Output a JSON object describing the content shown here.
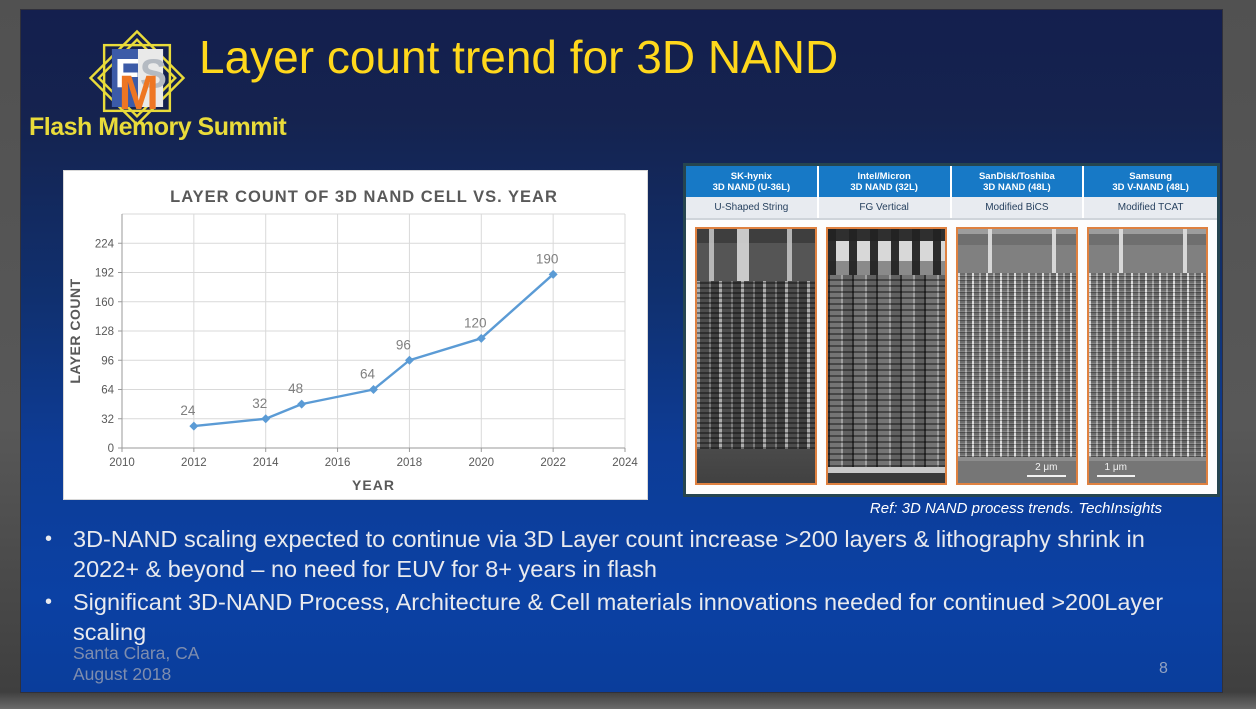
{
  "header": {
    "title": "Layer count trend for 3D NAND",
    "logo_text": "Flash Memory Summit"
  },
  "chart_data": {
    "type": "line",
    "title": "LAYER COUNT OF 3D NAND CELL VS. YEAR",
    "xlabel": "YEAR",
    "ylabel": "LAYER COUNT",
    "x": [
      2012,
      2014,
      2015,
      2017,
      2018,
      2020,
      2022
    ],
    "values": [
      24,
      32,
      48,
      64,
      96,
      120,
      190
    ],
    "point_labels": [
      "24",
      "32",
      "48",
      "64",
      "96",
      "120",
      "190"
    ],
    "xlim": [
      2010,
      2024
    ],
    "ylim": [
      0,
      256
    ],
    "x_ticks": [
      2010,
      2012,
      2014,
      2016,
      2018,
      2020,
      2022,
      2024
    ],
    "y_ticks": [
      0,
      32,
      64,
      96,
      128,
      160,
      192,
      224
    ],
    "grid": true,
    "legend": "none",
    "line_color": "#5b9bd5",
    "point_label_color": "#7f7f7f",
    "axis_text_color": "#595959",
    "grid_color": "#d9d9d9"
  },
  "sem_table": {
    "columns": [
      {
        "vendor": "SK-hynix",
        "device": "3D NAND (U-36L)",
        "architecture": "U-Shaped String",
        "scale_label": ""
      },
      {
        "vendor": "Intel/Micron",
        "device": "3D NAND (32L)",
        "architecture": "FG Vertical",
        "scale_label": ""
      },
      {
        "vendor": "SanDisk/Toshiba",
        "device": "3D NAND (48L)",
        "architecture": "Modified BiCS",
        "scale_label": "2 μm"
      },
      {
        "vendor": "Samsung",
        "device": "3D V-NAND (48L)",
        "architecture": "Modified TCAT",
        "scale_label": "1 μm"
      }
    ],
    "caption": "Ref: 3D  NAND process trends. TechInsights",
    "header_bg": "#1779c6",
    "panel_border": "#df8140"
  },
  "bullets": {
    "items": [
      "3D-NAND scaling expected to continue via 3D Layer count increase >200 layers & lithography shrink in 2022+ & beyond – no need for EUV for 8+ years in flash",
      "Significant 3D-NAND Process, Architecture & Cell materials innovations needed for continued >200Layer scaling"
    ]
  },
  "footer": {
    "location": "Santa Clara, CA",
    "date": "August 2018",
    "page_number": "8"
  },
  "colors": {
    "slide_top": "#141f4e",
    "slide_bottom": "#0b41a4",
    "title_yellow": "#ffd81c",
    "logo_yellow": "#e9db3a"
  }
}
